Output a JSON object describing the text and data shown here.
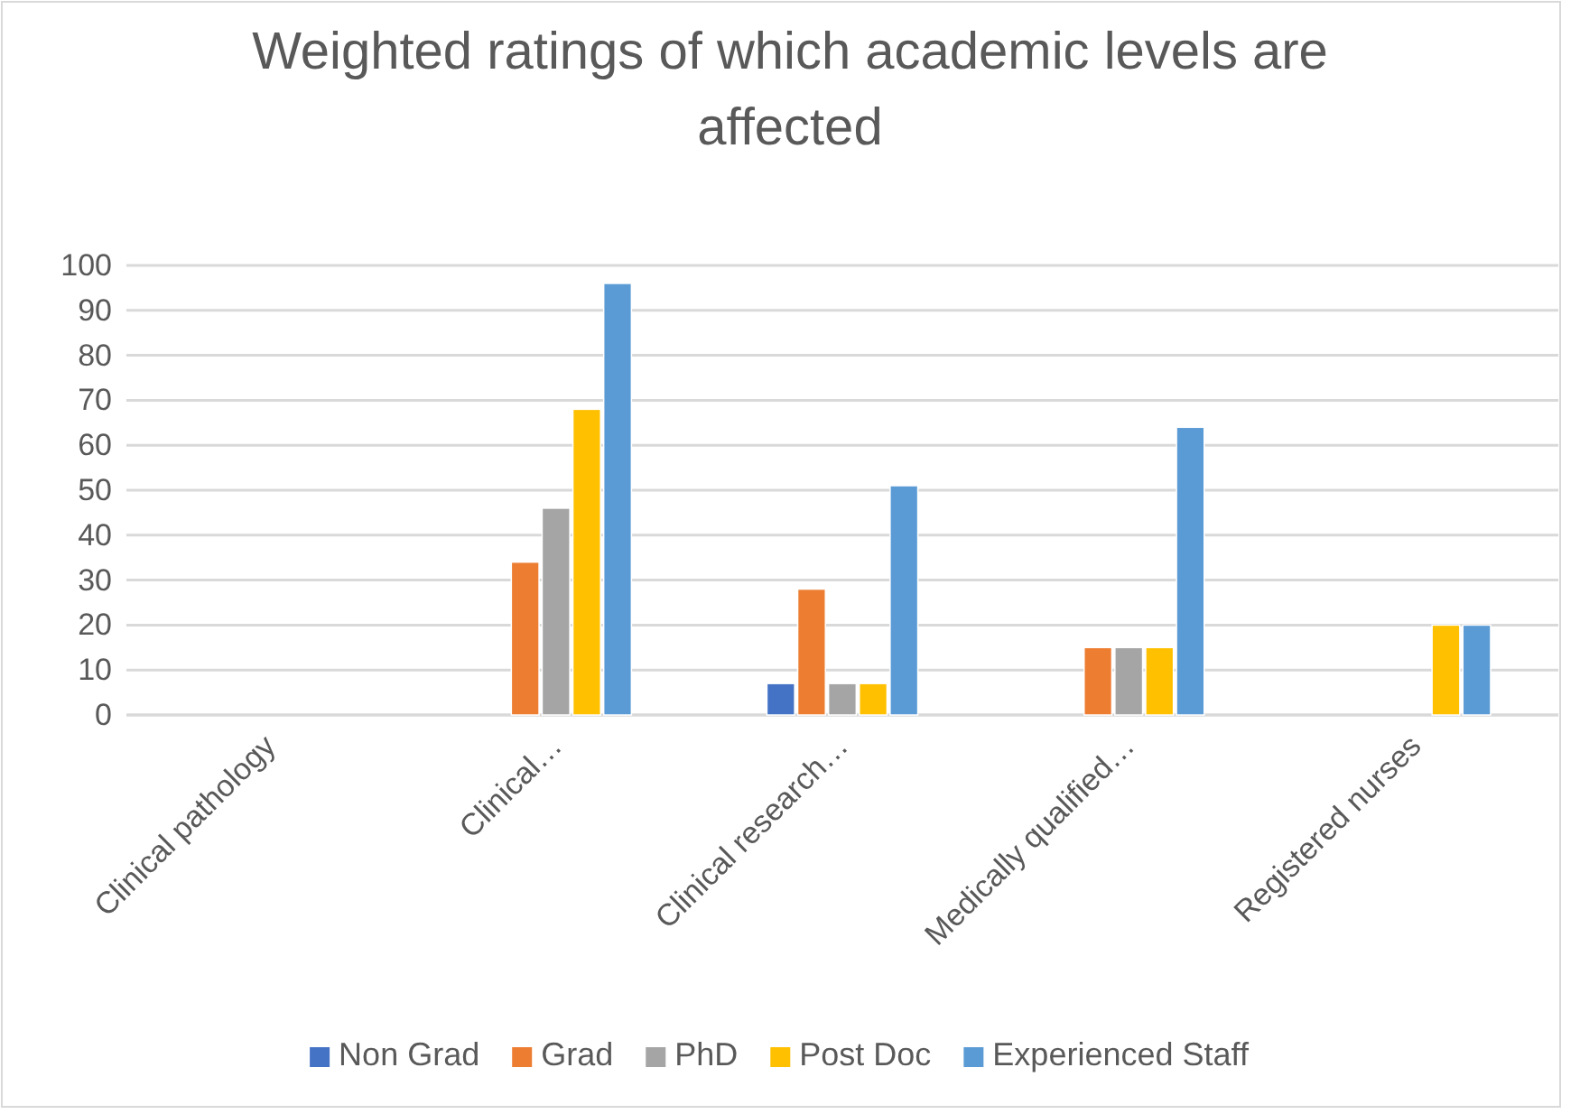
{
  "chart_data": {
    "type": "bar",
    "title": "Weighted ratings of which academic levels are affected",
    "categories": [
      "Clinical pathology",
      "Clinical…",
      "Clinical research…",
      "Medically qualified…",
      "Registered nurses"
    ],
    "series": [
      {
        "name": "Non Grad",
        "color": "#4472c4",
        "values": [
          null,
          null,
          7,
          null,
          null
        ]
      },
      {
        "name": "Grad",
        "color": "#ed7d31",
        "values": [
          null,
          34,
          28,
          15,
          null
        ]
      },
      {
        "name": "PhD",
        "color": "#a5a5a5",
        "values": [
          null,
          46,
          7,
          15,
          null
        ]
      },
      {
        "name": "Post Doc",
        "color": "#ffc000",
        "values": [
          null,
          68,
          7,
          15,
          20
        ]
      },
      {
        "name": "Experienced Staff",
        "color": "#5b9bd5",
        "values": [
          null,
          96,
          51,
          64,
          20
        ]
      }
    ],
    "ylim": [
      0,
      100
    ],
    "yticks": [
      0,
      10,
      20,
      30,
      40,
      50,
      60,
      70,
      80,
      90,
      100
    ],
    "grid": "y",
    "legend": "bottom"
  }
}
